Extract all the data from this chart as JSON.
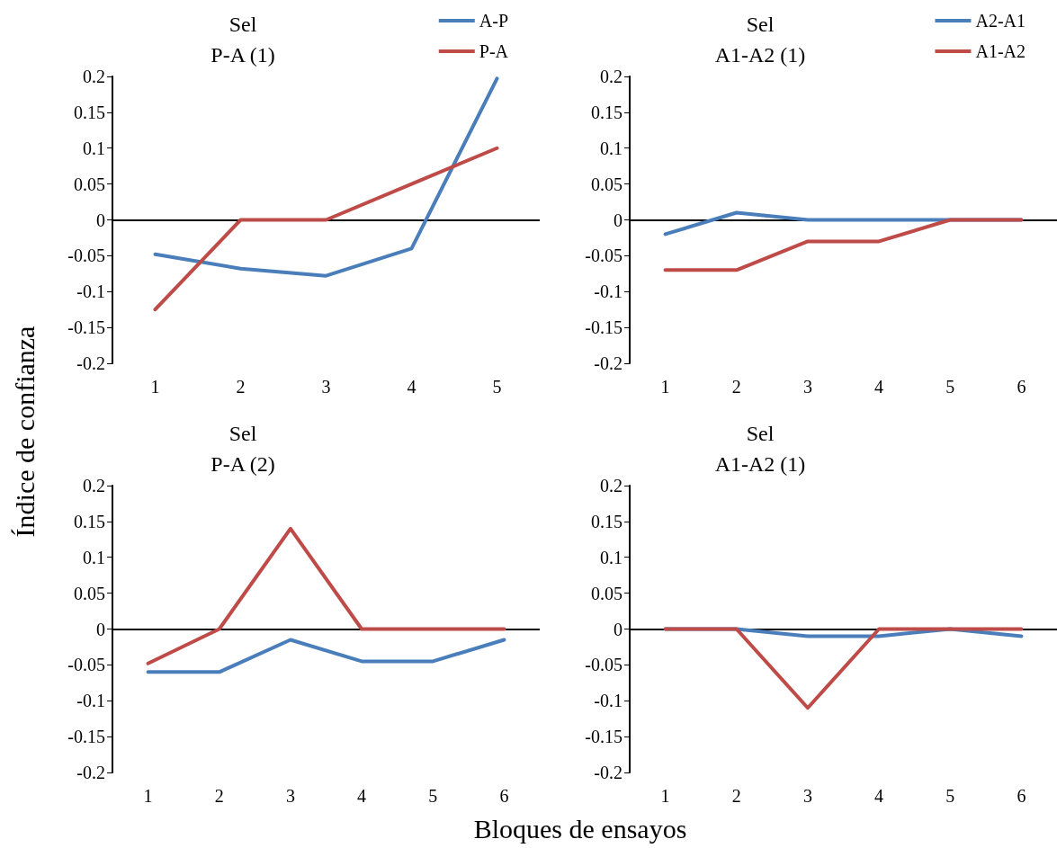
{
  "chart_data": [
    {
      "type": "line",
      "title": "Sel\nP-A (1)",
      "ylabel": "Índice de confianza",
      "categories": [
        "1",
        "2",
        "3",
        "4",
        "5"
      ],
      "ylim": [
        -0.2,
        0.2
      ],
      "yticks": [
        -0.2,
        -0.15,
        -0.1,
        -0.05,
        0,
        0.05,
        0.1,
        0.15,
        0.2
      ],
      "legend": "top right",
      "marker": "none",
      "series": [
        {
          "name": "A-P",
          "color": "#4a7ebb",
          "values": [
            -0.048,
            -0.068,
            -0.078,
            -0.04,
            0.197
          ]
        },
        {
          "name": "P-A",
          "color": "#be4b48",
          "values": [
            -0.125,
            0,
            0,
            0.05,
            0.1
          ]
        }
      ]
    },
    {
      "type": "line",
      "title": "Sel\nA1-A2 (1)",
      "categories": [
        "1",
        "2",
        "3",
        "4",
        "5",
        "6"
      ],
      "ylim": [
        -0.2,
        0.2
      ],
      "yticks": [
        -0.2,
        -0.15,
        -0.1,
        -0.05,
        0,
        0.05,
        0.1,
        0.15,
        0.2
      ],
      "legend": "top right",
      "marker": "none",
      "series": [
        {
          "name": "A2-A1",
          "color": "#4a7ebb",
          "values": [
            -0.02,
            0.01,
            0,
            0,
            0,
            0
          ]
        },
        {
          "name": "A1-A2",
          "color": "#be4b48",
          "values": [
            -0.07,
            -0.07,
            -0.03,
            -0.03,
            0,
            0
          ]
        }
      ]
    },
    {
      "type": "line",
      "title": "Sel\nP-A (2)",
      "xlabel": "Bloques de ensayos",
      "categories": [
        "1",
        "2",
        "3",
        "4",
        "5",
        "6"
      ],
      "ylim": [
        -0.2,
        0.2
      ],
      "yticks": [
        -0.2,
        -0.15,
        -0.1,
        -0.05,
        0,
        0.05,
        0.1,
        0.15,
        0.2
      ],
      "marker": "none",
      "series": [
        {
          "color": "#4a7ebb",
          "values": [
            -0.06,
            -0.06,
            -0.015,
            -0.045,
            -0.045,
            -0.015
          ]
        },
        {
          "color": "#be4b48",
          "values": [
            -0.048,
            0,
            0.14,
            0,
            0,
            0
          ]
        }
      ]
    },
    {
      "type": "line",
      "title": "Sel\nA1-A2 (1)",
      "categories": [
        "1",
        "2",
        "3",
        "4",
        "5",
        "6"
      ],
      "ylim": [
        -0.2,
        0.2
      ],
      "yticks": [
        -0.2,
        -0.15,
        -0.1,
        -0.05,
        0,
        0.05,
        0.1,
        0.15,
        0.2
      ],
      "marker": "none",
      "series": [
        {
          "color": "#4a7ebb",
          "values": [
            0,
            0,
            -0.01,
            -0.01,
            0,
            -0.01
          ]
        },
        {
          "color": "#be4b48",
          "values": [
            0,
            0,
            -0.11,
            0,
            0,
            0
          ]
        }
      ]
    }
  ]
}
